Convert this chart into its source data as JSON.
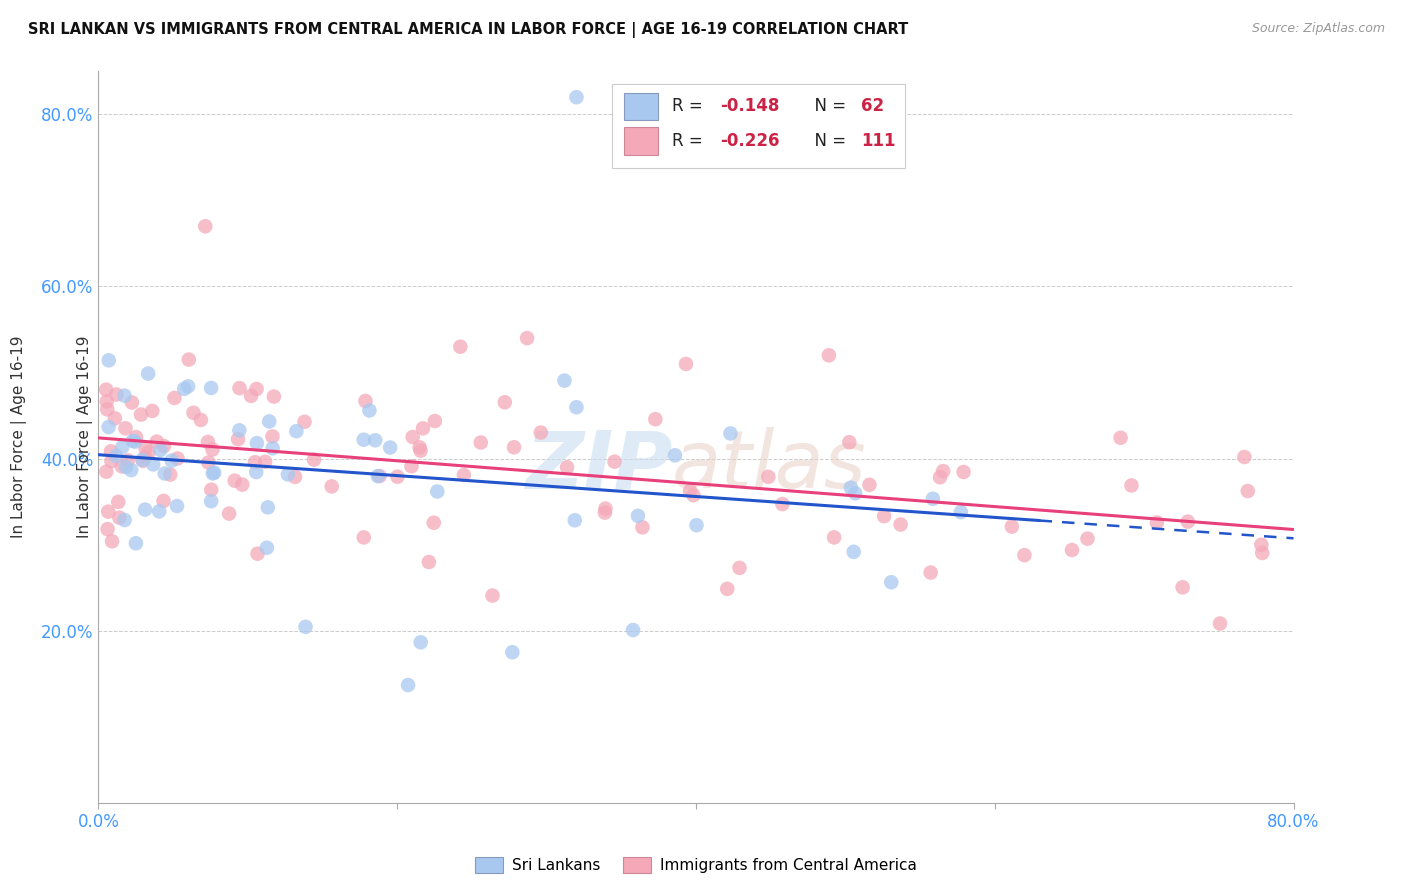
{
  "title": "SRI LANKAN VS IMMIGRANTS FROM CENTRAL AMERICA IN LABOR FORCE | AGE 16-19 CORRELATION CHART",
  "source": "Source: ZipAtlas.com",
  "ylabel": "In Labor Force | Age 16-19",
  "xlim": [
    0.0,
    0.8
  ],
  "ylim": [
    0.0,
    0.85
  ],
  "grid_color": "#cccccc",
  "background_color": "#ffffff",
  "sri_lanka_color": "#a8c8f0",
  "central_america_color": "#f4a8b8",
  "sri_lanka_line_color": "#2255cc",
  "central_america_line_color": "#e8407a",
  "sri_lanka_label": "Sri Lankans",
  "central_america_label": "Immigrants from Central America",
  "legend_r1": "-0.148",
  "legend_n1": "62",
  "legend_r2": "-0.226",
  "legend_n2": "111",
  "y_tick_color": "#4499ff",
  "x_tick_color": "#4499ff"
}
